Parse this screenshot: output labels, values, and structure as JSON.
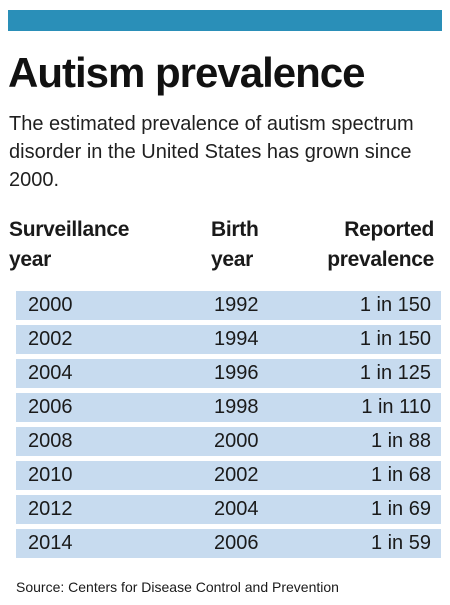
{
  "title": "Autism prevalence",
  "subtitle": "The estimated prevalence of autism spectrum disorder in the United States has grown since 2000.",
  "columns": {
    "year_line1": "Surveillance",
    "year_line2": "year",
    "birth_line1": "Birth",
    "birth_line2": "year",
    "prev_line1": "Reported",
    "prev_line2": "prevalence"
  },
  "source": "Source: Centers for Disease Control and Prevention",
  "colors": {
    "accent_bar": "#2a8fb8",
    "row_fill": "#c7dbef"
  },
  "chart_data": {
    "type": "table",
    "title": "Autism prevalence",
    "columns": [
      "Surveillance year",
      "Birth year",
      "Reported prevalence"
    ],
    "rows": [
      [
        "2000",
        "1992",
        "1 in 150"
      ],
      [
        "2002",
        "1994",
        "1 in 150"
      ],
      [
        "2004",
        "1996",
        "1 in 125"
      ],
      [
        "2006",
        "1998",
        "1 in 110"
      ],
      [
        "2008",
        "2000",
        "1 in 88"
      ],
      [
        "2010",
        "2002",
        "1 in 68"
      ],
      [
        "2012",
        "2004",
        "1 in 69"
      ],
      [
        "2014",
        "2006",
        "1 in 59"
      ]
    ]
  }
}
